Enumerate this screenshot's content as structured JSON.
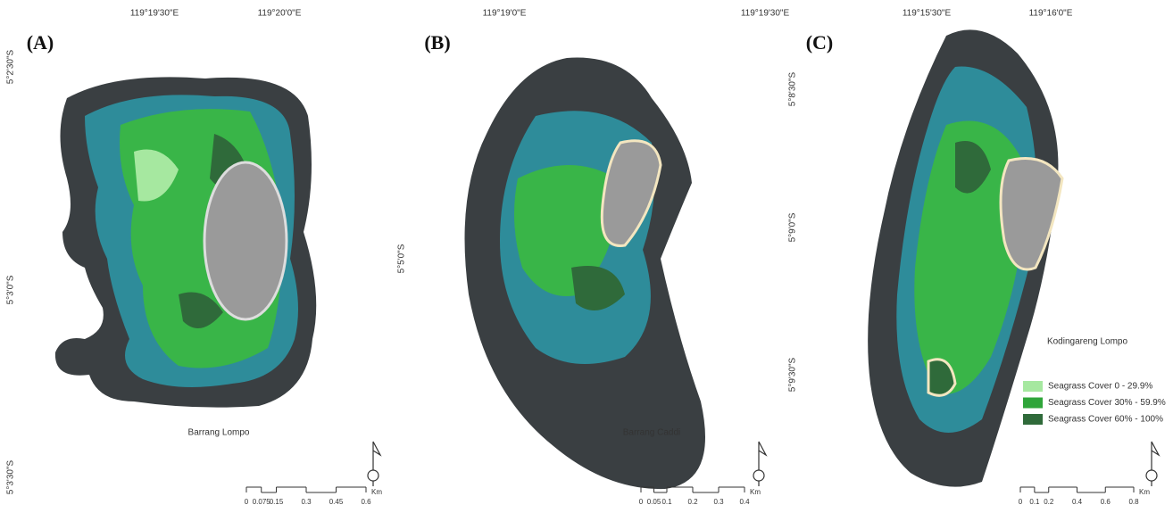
{
  "panels": [
    {
      "label": "(A)",
      "top_coords": [
        "119°19'30\"E",
        "119°20'0\"E"
      ],
      "left_coords": [
        "5°2'30\"S",
        "5°3'0\"S",
        "5°3'30\"S"
      ],
      "island_name": "Barrang Lompo",
      "scale_labels": [
        "0",
        "0.075",
        "0.15",
        "0.3",
        "0.45",
        "0.6"
      ],
      "scale_unit": "Km"
    },
    {
      "label": "(B)",
      "top_coords": [
        "119°19'0\"E",
        "119°19'30\"E"
      ],
      "left_coords": [
        "5°5'0\"S"
      ],
      "island_name": "Barrang Caddi",
      "scale_labels": [
        "0",
        "0.05",
        "0.1",
        "0.2",
        "0.3",
        "0.4"
      ],
      "scale_unit": "Km"
    },
    {
      "label": "(C)",
      "top_coords": [
        "119°15'30\"E",
        "119°16'0\"E"
      ],
      "left_coords": [
        "5°8'30\"S",
        "5°9'0\"S",
        "5°9'30\"S"
      ],
      "island_name": "Kodingareng Lompo",
      "scale_labels": [
        "0",
        "0.1",
        "0.2",
        "0.4",
        "0.6",
        "0.8"
      ],
      "scale_unit": "Km"
    }
  ],
  "legend": [
    {
      "label": "Seagrass Cover 0 - 29.9%",
      "color": "#a6e8a0"
    },
    {
      "label": "Seagrass Cover 30% - 59.9%",
      "color": "#2fa53a"
    },
    {
      "label": "Seagrass Cover 60% - 100%",
      "color": "#2f6a3a"
    }
  ]
}
